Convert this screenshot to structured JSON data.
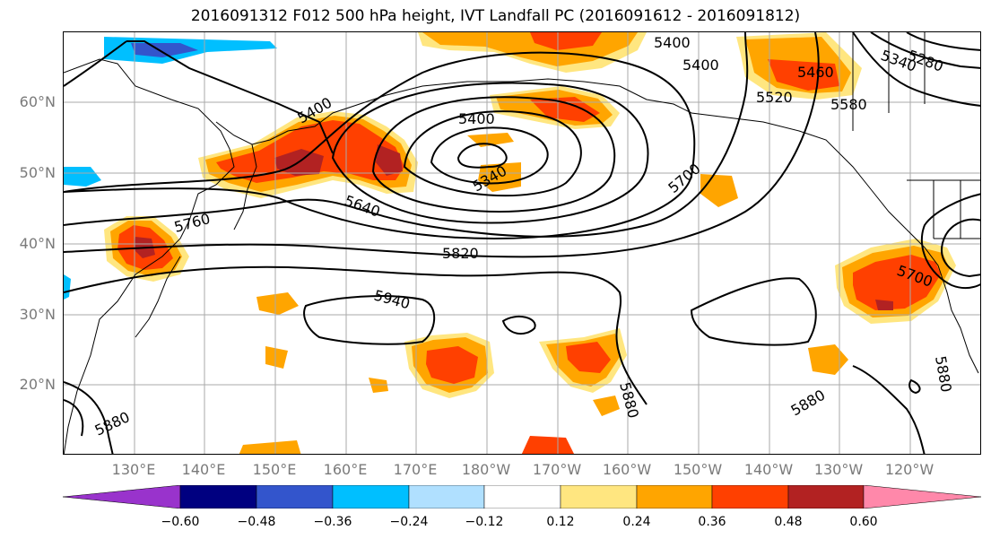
{
  "title": "2016091312 F012 500 hPa height, IVT Landfall PC (2016091612 - 2016091812)",
  "latitude_labels": [
    "60°N",
    "50°N",
    "40°N",
    "30°N",
    "20°N"
  ],
  "longitude_labels": [
    "130°E",
    "140°E",
    "150°E",
    "160°E",
    "170°E",
    "180°W",
    "170°W",
    "160°W",
    "150°W",
    "140°W",
    "130°W",
    "120°W"
  ],
  "contour_labels": [
    "5400",
    "5400",
    "5400",
    "5340",
    "5280",
    "5460",
    "5520",
    "5580",
    "5400",
    "5340",
    "5640",
    "5760",
    "5700",
    "5820",
    "5940",
    "5700",
    "5880",
    "5880",
    "5880",
    "5880"
  ],
  "colorbar": {
    "tick_labels": [
      "−0.60",
      "−0.48",
      "−0.36",
      "−0.24",
      "−0.12",
      "0.12",
      "0.24",
      "0.36",
      "0.48",
      "0.60"
    ],
    "colors": [
      "#9933cc",
      "#000080",
      "#3355cc",
      "#00bfff",
      "#b0e0ff",
      "#ffffff",
      "#ffe680",
      "#ffa500",
      "#ff4000",
      "#b22222",
      "#ff88aa"
    ]
  },
  "fill_colors": {
    "light_yellow": "#ffe680",
    "orange": "#ffa500",
    "red_orange": "#ff4000",
    "dark_red": "#b22222",
    "light_blue": "#b0e0ff",
    "sky_blue": "#00bfff",
    "blue": "#3355cc"
  }
}
